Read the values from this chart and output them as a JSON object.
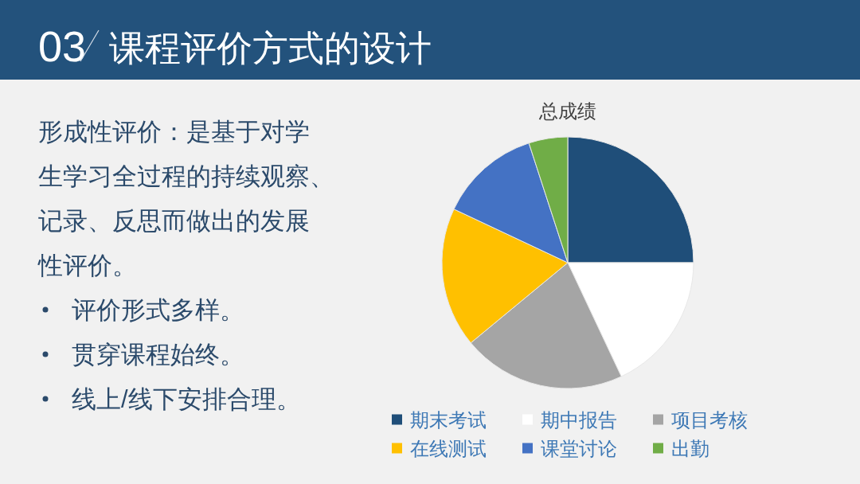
{
  "chart_data": {
    "type": "pie",
    "title": "总成绩",
    "categories": [
      "期末考试",
      "期中报告",
      "项目考核",
      "在线测试",
      "课堂讨论",
      "出勤"
    ],
    "values": [
      25,
      18,
      21,
      18,
      13,
      5
    ],
    "colors": [
      "#1f4e79",
      "#ffffff",
      "#a5a5a5",
      "#ffc000",
      "#4472c4",
      "#70ad47"
    ],
    "legend": "bottom",
    "annotations": [
      "03",
      "课程评价方式的设计",
      "形成性评价：是基于对学",
      "生学习全过程的持续观察、",
      "记录、反思而做出的发展",
      "性评价。",
      "评价形式多样。",
      "贯穿课程始终。",
      "线上/线下安排合理。"
    ]
  }
}
